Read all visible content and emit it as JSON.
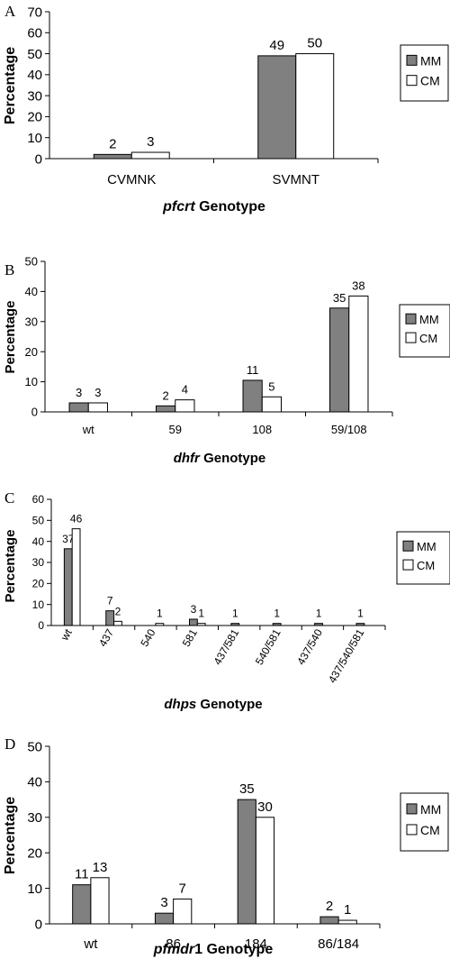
{
  "colors": {
    "MM": "#808080",
    "CM": "#ffffff",
    "outline": "#000000"
  },
  "chart_data": [
    {
      "type": "bar",
      "panel": "A",
      "categories": [
        "CVMNK",
        "SVMNT"
      ],
      "series": [
        {
          "name": "MM",
          "values": [
            2,
            49
          ]
        },
        {
          "name": "CM",
          "values": [
            3,
            50
          ]
        }
      ],
      "data_labels": [
        [
          "2",
          "49"
        ],
        [
          "3",
          "50"
        ]
      ],
      "ylabel": "Percentage",
      "xlabel_italic": "pfcrt",
      "xlabel_rest": " Genotype",
      "ylim": [
        0,
        70
      ],
      "yticks": [
        0,
        10,
        20,
        30,
        40,
        50,
        60,
        70
      ],
      "legend": "right"
    },
    {
      "type": "bar",
      "panel": "B",
      "categories": [
        "wt",
        "59",
        "108",
        "59/108"
      ],
      "series": [
        {
          "name": "MM",
          "values": [
            3,
            2,
            10.5,
            34.5
          ]
        },
        {
          "name": "CM",
          "values": [
            3,
            4,
            5,
            38.5
          ]
        }
      ],
      "data_labels": [
        [
          "3",
          "2",
          "11",
          "35"
        ],
        [
          "3",
          "4",
          "5",
          "38"
        ]
      ],
      "ylabel": "Percentage",
      "xlabel_italic": "dhfr",
      "xlabel_rest": " Genotype",
      "ylim": [
        0,
        50
      ],
      "yticks": [
        0,
        10,
        20,
        30,
        40,
        50
      ],
      "legend": "right"
    },
    {
      "type": "bar",
      "panel": "C",
      "categories": [
        "wt",
        "437",
        "540",
        "581",
        "437/581",
        "540/581",
        "437/540",
        "437/540/581"
      ],
      "series": [
        {
          "name": "MM",
          "values": [
            36.5,
            7,
            0,
            3,
            1,
            1,
            1,
            1
          ]
        },
        {
          "name": "CM",
          "values": [
            46,
            2,
            1,
            1,
            0,
            0,
            0,
            0
          ]
        }
      ],
      "data_labels": [
        [
          "37",
          "7",
          "",
          "3",
          "1",
          "1",
          "1",
          "1"
        ],
        [
          "46",
          "2",
          "1",
          "1",
          "",
          "",
          "",
          ""
        ]
      ],
      "ylabel": "Percentage",
      "xlabel_italic": "dhps",
      "xlabel_rest": " Genotype",
      "ylim": [
        0,
        60
      ],
      "yticks": [
        0,
        10,
        20,
        30,
        40,
        50,
        60
      ],
      "legend": "right"
    },
    {
      "type": "bar",
      "panel": "D",
      "categories": [
        "wt",
        "86",
        "184",
        "86/184"
      ],
      "series": [
        {
          "name": "MM",
          "values": [
            11,
            3,
            35,
            2
          ]
        },
        {
          "name": "CM",
          "values": [
            13,
            7,
            30,
            1
          ]
        }
      ],
      "data_labels": [
        [
          "11",
          "3",
          "35",
          "2"
        ],
        [
          "13",
          "7",
          "30",
          "1"
        ]
      ],
      "ylabel": "Percentage",
      "xlabel_italic": "pfmdr",
      "xlabel_rest": "1 Genotype",
      "ylim": [
        0,
        50
      ],
      "yticks": [
        0,
        10,
        20,
        30,
        40,
        50
      ],
      "legend": "right"
    }
  ]
}
